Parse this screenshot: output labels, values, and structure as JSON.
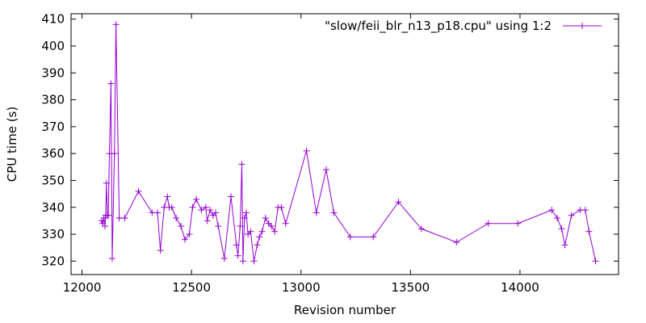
{
  "chart_data": {
    "type": "line",
    "xlabel": "Revision number",
    "ylabel": "CPU time (s)",
    "xlim": [
      11950,
      14450
    ],
    "ylim": [
      315,
      412
    ],
    "x_ticks": [
      12000,
      12500,
      13000,
      13500,
      14000
    ],
    "y_ticks": [
      320,
      330,
      340,
      350,
      360,
      370,
      380,
      390,
      400,
      410
    ],
    "grid": false,
    "legend_position": "top-right",
    "series": [
      {
        "name": "\"slow/feii_blr_n13_p18.cpu\" using 1:2",
        "color": "#9400d3",
        "marker": "plus",
        "points": [
          [
            12090,
            335
          ],
          [
            12095,
            334
          ],
          [
            12100,
            336
          ],
          [
            12105,
            333
          ],
          [
            12108,
            337
          ],
          [
            12112,
            349
          ],
          [
            12116,
            337
          ],
          [
            12120,
            337
          ],
          [
            12125,
            360
          ],
          [
            12132,
            386
          ],
          [
            12138,
            321
          ],
          [
            12148,
            360
          ],
          [
            12155,
            408
          ],
          [
            12170,
            336
          ],
          [
            12195,
            336
          ],
          [
            12258,
            346
          ],
          [
            12320,
            338
          ],
          [
            12345,
            338
          ],
          [
            12358,
            324
          ],
          [
            12375,
            340
          ],
          [
            12390,
            344
          ],
          [
            12398,
            340
          ],
          [
            12410,
            340
          ],
          [
            12430,
            336
          ],
          [
            12452,
            333
          ],
          [
            12470,
            328
          ],
          [
            12490,
            330
          ],
          [
            12505,
            340
          ],
          [
            12522,
            343
          ],
          [
            12545,
            339
          ],
          [
            12565,
            340
          ],
          [
            12572,
            335
          ],
          [
            12585,
            339
          ],
          [
            12598,
            337
          ],
          [
            12610,
            338
          ],
          [
            12622,
            333
          ],
          [
            12650,
            321
          ],
          [
            12680,
            344
          ],
          [
            12705,
            326
          ],
          [
            12712,
            322
          ],
          [
            12722,
            333
          ],
          [
            12730,
            356
          ],
          [
            12735,
            320
          ],
          [
            12742,
            336
          ],
          [
            12750,
            338
          ],
          [
            12758,
            330
          ],
          [
            12770,
            331
          ],
          [
            12785,
            320
          ],
          [
            12800,
            326
          ],
          [
            12810,
            329
          ],
          [
            12822,
            331
          ],
          [
            12838,
            336
          ],
          [
            12852,
            334
          ],
          [
            12865,
            333
          ],
          [
            12880,
            331
          ],
          [
            12895,
            340
          ],
          [
            12910,
            340
          ],
          [
            12930,
            334
          ],
          [
            13025,
            361
          ],
          [
            13070,
            338
          ],
          [
            13115,
            354
          ],
          [
            13150,
            338
          ],
          [
            13225,
            329
          ],
          [
            13330,
            329
          ],
          [
            13445,
            342
          ],
          [
            13550,
            332
          ],
          [
            13710,
            327
          ],
          [
            13855,
            334
          ],
          [
            13990,
            334
          ],
          [
            14145,
            339
          ],
          [
            14170,
            336
          ],
          [
            14190,
            332
          ],
          [
            14205,
            326
          ],
          [
            14235,
            337
          ],
          [
            14275,
            339
          ],
          [
            14298,
            339
          ],
          [
            14315,
            331
          ],
          [
            14345,
            320
          ]
        ]
      }
    ]
  }
}
